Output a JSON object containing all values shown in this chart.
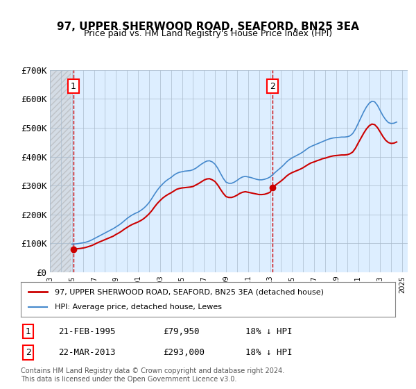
{
  "title": "97, UPPER SHERWOOD ROAD, SEAFORD, BN25 3EA",
  "subtitle": "Price paid vs. HM Land Registry's House Price Index (HPI)",
  "ylabel": "",
  "bg_color": "#ddeeff",
  "hatch_color": "#bbccdd",
  "grid_color": "#aabbcc",
  "red_line_color": "#cc0000",
  "blue_line_color": "#4488cc",
  "transactions": [
    {
      "date_num": 1995.13,
      "price": 79950,
      "label": "1",
      "date_str": "21-FEB-1995",
      "pct": "18% ↓ HPI"
    },
    {
      "date_num": 2013.22,
      "price": 293000,
      "label": "2",
      "date_str": "22-MAR-2013",
      "pct": "18% ↓ HPI"
    }
  ],
  "xmin": 1993.0,
  "xmax": 2025.5,
  "ymin": 0,
  "ymax": 700000,
  "yticks": [
    0,
    100000,
    200000,
    300000,
    400000,
    500000,
    600000,
    700000
  ],
  "ytick_labels": [
    "£0",
    "£100K",
    "£200K",
    "£300K",
    "£400K",
    "£500K",
    "£600K",
    "£700K"
  ],
  "legend_line1": "97, UPPER SHERWOOD ROAD, SEAFORD, BN25 3EA (detached house)",
  "legend_line2": "HPI: Average price, detached house, Lewes",
  "footer": "Contains HM Land Registry data © Crown copyright and database right 2024.\nThis data is licensed under the Open Government Licence v3.0.",
  "hpi_data_x": [
    1995.0,
    1995.25,
    1995.5,
    1995.75,
    1996.0,
    1996.25,
    1996.5,
    1996.75,
    1997.0,
    1997.25,
    1997.5,
    1997.75,
    1998.0,
    1998.25,
    1998.5,
    1998.75,
    1999.0,
    1999.25,
    1999.5,
    1999.75,
    2000.0,
    2000.25,
    2000.5,
    2000.75,
    2001.0,
    2001.25,
    2001.5,
    2001.75,
    2002.0,
    2002.25,
    2002.5,
    2002.75,
    2003.0,
    2003.25,
    2003.5,
    2003.75,
    2004.0,
    2004.25,
    2004.5,
    2004.75,
    2005.0,
    2005.25,
    2005.5,
    2005.75,
    2006.0,
    2006.25,
    2006.5,
    2006.75,
    2007.0,
    2007.25,
    2007.5,
    2007.75,
    2008.0,
    2008.25,
    2008.5,
    2008.75,
    2009.0,
    2009.25,
    2009.5,
    2009.75,
    2010.0,
    2010.25,
    2010.5,
    2010.75,
    2011.0,
    2011.25,
    2011.5,
    2011.75,
    2012.0,
    2012.25,
    2012.5,
    2012.75,
    2013.0,
    2013.25,
    2013.5,
    2013.75,
    2014.0,
    2014.25,
    2014.5,
    2014.75,
    2015.0,
    2015.25,
    2015.5,
    2015.75,
    2016.0,
    2016.25,
    2016.5,
    2016.75,
    2017.0,
    2017.25,
    2017.5,
    2017.75,
    2018.0,
    2018.25,
    2018.5,
    2018.75,
    2019.0,
    2019.25,
    2019.5,
    2019.75,
    2020.0,
    2020.25,
    2020.5,
    2020.75,
    2021.0,
    2021.25,
    2021.5,
    2021.75,
    2022.0,
    2022.25,
    2022.5,
    2022.75,
    2023.0,
    2023.25,
    2023.5,
    2023.75,
    2024.0,
    2024.25,
    2024.5
  ],
  "hpi_data_y": [
    97500,
    98000,
    99000,
    100500,
    102000,
    104000,
    107000,
    111000,
    116000,
    121000,
    126000,
    131000,
    136000,
    141000,
    146000,
    151000,
    157000,
    163000,
    170000,
    178000,
    186000,
    193000,
    199000,
    204000,
    208000,
    214000,
    221000,
    230000,
    241000,
    255000,
    270000,
    284000,
    296000,
    306000,
    315000,
    322000,
    328000,
    336000,
    342000,
    346000,
    348000,
    350000,
    351000,
    352000,
    355000,
    360000,
    367000,
    374000,
    380000,
    385000,
    386000,
    382000,
    374000,
    360000,
    342000,
    325000,
    312000,
    308000,
    308000,
    312000,
    318000,
    325000,
    330000,
    332000,
    330000,
    328000,
    325000,
    322000,
    320000,
    320000,
    322000,
    325000,
    330000,
    338000,
    347000,
    355000,
    363000,
    372000,
    382000,
    390000,
    396000,
    401000,
    406000,
    411000,
    417000,
    424000,
    431000,
    436000,
    440000,
    444000,
    448000,
    452000,
    456000,
    460000,
    463000,
    465000,
    466000,
    467000,
    468000,
    468000,
    469000,
    472000,
    480000,
    495000,
    515000,
    535000,
    555000,
    572000,
    585000,
    592000,
    590000,
    578000,
    560000,
    542000,
    528000,
    518000,
    515000,
    516000,
    520000
  ],
  "price_line_x": [
    1995.13,
    1995.25,
    1995.5,
    1995.75,
    1996.0,
    1996.25,
    1996.5,
    1996.75,
    1997.0,
    1997.25,
    1997.5,
    1997.75,
    1998.0,
    1998.25,
    1998.5,
    1998.75,
    1999.0,
    1999.25,
    1999.5,
    1999.75,
    2000.0,
    2000.25,
    2000.5,
    2000.75,
    2001.0,
    2001.25,
    2001.5,
    2001.75,
    2002.0,
    2002.25,
    2002.5,
    2002.75,
    2003.0,
    2003.25,
    2003.5,
    2003.75,
    2004.0,
    2004.25,
    2004.5,
    2004.75,
    2005.0,
    2005.25,
    2005.5,
    2005.75,
    2006.0,
    2006.25,
    2006.5,
    2006.75,
    2007.0,
    2007.25,
    2007.5,
    2007.75,
    2008.0,
    2008.25,
    2008.5,
    2008.75,
    2009.0,
    2009.25,
    2009.5,
    2009.75,
    2010.0,
    2010.25,
    2010.5,
    2010.75,
    2011.0,
    2011.25,
    2011.5,
    2011.75,
    2012.0,
    2012.25,
    2012.5,
    2012.75,
    2013.0,
    2013.22,
    2013.5,
    2013.75,
    2014.0,
    2014.25,
    2014.5,
    2014.75,
    2015.0,
    2015.25,
    2015.5,
    2015.75,
    2016.0,
    2016.25,
    2016.5,
    2016.75,
    2017.0,
    2017.25,
    2017.5,
    2017.75,
    2018.0,
    2018.25,
    2018.5,
    2018.75,
    2019.0,
    2019.25,
    2019.5,
    2019.75,
    2020.0,
    2020.25,
    2020.5,
    2020.75,
    2021.0,
    2021.25,
    2021.5,
    2021.75,
    2022.0,
    2022.25,
    2022.5,
    2022.75,
    2023.0,
    2023.25,
    2023.5,
    2023.75,
    2024.0,
    2024.25,
    2024.5
  ],
  "price_line_y": [
    79950,
    80500,
    81500,
    82500,
    84000,
    86000,
    89000,
    92000,
    96000,
    101000,
    105000,
    109000,
    113000,
    117000,
    121000,
    125000,
    131000,
    136000,
    142000,
    149000,
    155000,
    161000,
    166000,
    170000,
    174000,
    179000,
    185000,
    193000,
    202000,
    213000,
    226000,
    238000,
    248000,
    257000,
    264000,
    270000,
    275000,
    281000,
    287000,
    290000,
    292000,
    293000,
    294000,
    295000,
    297000,
    302000,
    307000,
    313000,
    319000,
    323000,
    324000,
    320000,
    314000,
    302000,
    287000,
    273000,
    262000,
    259000,
    259000,
    262000,
    267000,
    273000,
    277000,
    279000,
    277000,
    275000,
    273000,
    271000,
    269000,
    269000,
    270000,
    273000,
    277000,
    293000,
    302000,
    309000,
    316000,
    324000,
    333000,
    340000,
    345000,
    349000,
    353000,
    357000,
    362000,
    368000,
    374000,
    379000,
    382000,
    386000,
    389000,
    393000,
    395000,
    398000,
    401000,
    403000,
    404000,
    405000,
    406000,
    406000,
    407000,
    410000,
    416000,
    429000,
    447000,
    464000,
    481000,
    496000,
    507000,
    513000,
    511000,
    501000,
    486000,
    470000,
    457000,
    449000,
    446000,
    447000,
    451000
  ]
}
